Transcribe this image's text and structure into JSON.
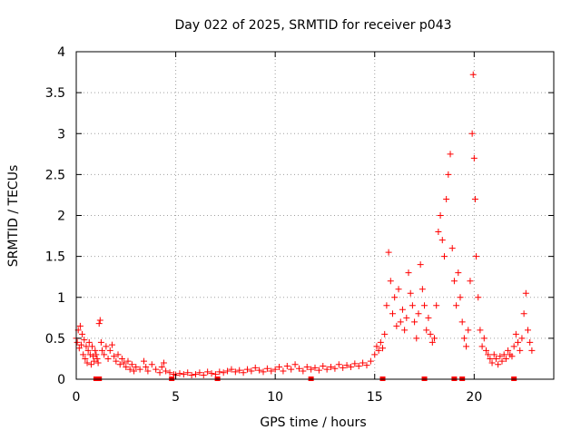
{
  "chart_data": {
    "type": "scatter",
    "title": "Day 022 of 2025, SRMTID for receiver p043",
    "xlabel": "GPS time / hours",
    "ylabel": "SRMTID / TECUs",
    "xlim": [
      0,
      24
    ],
    "ylim": [
      0,
      4
    ],
    "xticks": [
      0,
      5,
      10,
      15,
      20
    ],
    "xtick_labels": [
      "0",
      "5",
      "10",
      "15",
      "20"
    ],
    "yticks": [
      0,
      0.5,
      1,
      1.5,
      2,
      2.5,
      3,
      3.5,
      4
    ],
    "ytick_labels": [
      "0",
      "0.5",
      "1",
      "1.5",
      "2",
      "2.5",
      "3",
      "3.5",
      "4"
    ],
    "grid": true,
    "marker": "+",
    "color": "#ff0000",
    "series_name": "SRMTID",
    "points": [
      [
        0.0,
        0.5
      ],
      [
        0.05,
        0.45
      ],
      [
        0.1,
        0.6
      ],
      [
        0.15,
        0.38
      ],
      [
        0.2,
        0.65
      ],
      [
        0.25,
        0.42
      ],
      [
        0.3,
        0.55
      ],
      [
        0.35,
        0.3
      ],
      [
        0.4,
        0.48
      ],
      [
        0.45,
        0.25
      ],
      [
        0.5,
        0.4
      ],
      [
        0.55,
        0.2
      ],
      [
        0.6,
        0.35
      ],
      [
        0.65,
        0.45
      ],
      [
        0.7,
        0.3
      ],
      [
        0.75,
        0.18
      ],
      [
        0.8,
        0.4
      ],
      [
        0.85,
        0.28
      ],
      [
        0.9,
        0.22
      ],
      [
        0.95,
        0.35
      ],
      [
        1.0,
        0.3
      ],
      [
        1.05,
        0.25
      ],
      [
        1.1,
        0.2
      ],
      [
        1.15,
        0.68
      ],
      [
        1.2,
        0.72
      ],
      [
        1.25,
        0.45
      ],
      [
        1.3,
        0.35
      ],
      [
        1.4,
        0.3
      ],
      [
        1.5,
        0.4
      ],
      [
        1.6,
        0.25
      ],
      [
        1.7,
        0.35
      ],
      [
        1.8,
        0.42
      ],
      [
        1.9,
        0.28
      ],
      [
        2.0,
        0.22
      ],
      [
        2.1,
        0.3
      ],
      [
        2.2,
        0.18
      ],
      [
        2.3,
        0.25
      ],
      [
        2.4,
        0.2
      ],
      [
        2.5,
        0.15
      ],
      [
        2.6,
        0.22
      ],
      [
        2.7,
        0.12
      ],
      [
        2.8,
        0.18
      ],
      [
        2.9,
        0.1
      ],
      [
        3.0,
        0.15
      ],
      [
        3.2,
        0.12
      ],
      [
        3.4,
        0.22
      ],
      [
        3.5,
        0.15
      ],
      [
        3.6,
        0.1
      ],
      [
        3.8,
        0.18
      ],
      [
        4.0,
        0.12
      ],
      [
        4.2,
        0.08
      ],
      [
        4.3,
        0.15
      ],
      [
        4.4,
        0.2
      ],
      [
        4.5,
        0.1
      ],
      [
        4.7,
        0.08
      ],
      [
        4.9,
        0.06
      ],
      [
        5.0,
        0.05
      ],
      [
        5.2,
        0.07
      ],
      [
        5.4,
        0.06
      ],
      [
        5.6,
        0.08
      ],
      [
        5.8,
        0.05
      ],
      [
        6.0,
        0.06
      ],
      [
        6.2,
        0.08
      ],
      [
        6.4,
        0.05
      ],
      [
        6.6,
        0.09
      ],
      [
        6.8,
        0.07
      ],
      [
        7.0,
        0.06
      ],
      [
        7.2,
        0.09
      ],
      [
        7.4,
        0.08
      ],
      [
        7.6,
        0.1
      ],
      [
        7.8,
        0.12
      ],
      [
        8.0,
        0.09
      ],
      [
        8.2,
        0.11
      ],
      [
        8.4,
        0.08
      ],
      [
        8.6,
        0.12
      ],
      [
        8.8,
        0.1
      ],
      [
        9.0,
        0.14
      ],
      [
        9.2,
        0.11
      ],
      [
        9.4,
        0.09
      ],
      [
        9.6,
        0.13
      ],
      [
        9.8,
        0.1
      ],
      [
        10.0,
        0.12
      ],
      [
        10.2,
        0.15
      ],
      [
        10.4,
        0.1
      ],
      [
        10.6,
        0.16
      ],
      [
        10.8,
        0.12
      ],
      [
        11.0,
        0.18
      ],
      [
        11.2,
        0.13
      ],
      [
        11.4,
        0.1
      ],
      [
        11.6,
        0.15
      ],
      [
        11.8,
        0.12
      ],
      [
        12.0,
        0.14
      ],
      [
        12.2,
        0.11
      ],
      [
        12.4,
        0.16
      ],
      [
        12.6,
        0.12
      ],
      [
        12.8,
        0.15
      ],
      [
        13.0,
        0.13
      ],
      [
        13.2,
        0.18
      ],
      [
        13.4,
        0.14
      ],
      [
        13.6,
        0.17
      ],
      [
        13.8,
        0.15
      ],
      [
        14.0,
        0.19
      ],
      [
        14.2,
        0.16
      ],
      [
        14.4,
        0.2
      ],
      [
        14.6,
        0.17
      ],
      [
        14.8,
        0.22
      ],
      [
        15.0,
        0.3
      ],
      [
        15.1,
        0.4
      ],
      [
        15.2,
        0.35
      ],
      [
        15.3,
        0.45
      ],
      [
        15.4,
        0.38
      ],
      [
        15.5,
        0.55
      ],
      [
        15.6,
        0.9
      ],
      [
        15.7,
        1.55
      ],
      [
        15.8,
        1.2
      ],
      [
        15.9,
        0.8
      ],
      [
        16.0,
        1.0
      ],
      [
        16.1,
        0.65
      ],
      [
        16.2,
        1.1
      ],
      [
        16.3,
        0.7
      ],
      [
        16.4,
        0.85
      ],
      [
        16.5,
        0.6
      ],
      [
        16.6,
        0.75
      ],
      [
        16.7,
        1.3
      ],
      [
        16.8,
        1.05
      ],
      [
        16.9,
        0.9
      ],
      [
        17.0,
        0.7
      ],
      [
        17.1,
        0.5
      ],
      [
        17.2,
        0.8
      ],
      [
        17.3,
        1.4
      ],
      [
        17.4,
        1.1
      ],
      [
        17.5,
        0.9
      ],
      [
        17.6,
        0.6
      ],
      [
        17.7,
        0.75
      ],
      [
        17.8,
        0.55
      ],
      [
        17.9,
        0.45
      ],
      [
        18.0,
        0.5
      ],
      [
        18.1,
        0.9
      ],
      [
        18.2,
        1.8
      ],
      [
        18.3,
        2.0
      ],
      [
        18.4,
        1.7
      ],
      [
        18.5,
        1.5
      ],
      [
        18.6,
        2.2
      ],
      [
        18.7,
        2.5
      ],
      [
        18.8,
        2.75
      ],
      [
        18.9,
        1.6
      ],
      [
        19.0,
        1.2
      ],
      [
        19.1,
        0.9
      ],
      [
        19.2,
        1.3
      ],
      [
        19.3,
        1.0
      ],
      [
        19.4,
        0.7
      ],
      [
        19.5,
        0.5
      ],
      [
        19.6,
        0.4
      ],
      [
        19.7,
        0.6
      ],
      [
        19.8,
        1.2
      ],
      [
        19.9,
        3.0
      ],
      [
        19.95,
        3.72
      ],
      [
        20.0,
        2.7
      ],
      [
        20.05,
        2.2
      ],
      [
        20.1,
        1.5
      ],
      [
        20.2,
        1.0
      ],
      [
        20.3,
        0.6
      ],
      [
        20.4,
        0.4
      ],
      [
        20.5,
        0.5
      ],
      [
        20.6,
        0.35
      ],
      [
        20.7,
        0.3
      ],
      [
        20.8,
        0.25
      ],
      [
        20.9,
        0.2
      ],
      [
        21.0,
        0.3
      ],
      [
        21.1,
        0.25
      ],
      [
        21.2,
        0.18
      ],
      [
        21.3,
        0.28
      ],
      [
        21.4,
        0.22
      ],
      [
        21.5,
        0.3
      ],
      [
        21.6,
        0.25
      ],
      [
        21.7,
        0.35
      ],
      [
        21.8,
        0.3
      ],
      [
        21.9,
        0.28
      ],
      [
        22.0,
        0.4
      ],
      [
        22.1,
        0.55
      ],
      [
        22.2,
        0.45
      ],
      [
        22.3,
        0.35
      ],
      [
        22.4,
        0.5
      ],
      [
        22.5,
        0.8
      ],
      [
        22.6,
        1.05
      ],
      [
        22.7,
        0.6
      ],
      [
        22.8,
        0.45
      ],
      [
        22.9,
        0.35
      ]
    ],
    "gap_markers_x": [
      1.0,
      1.15,
      4.8,
      7.1,
      11.8,
      15.4,
      17.5,
      19.0,
      19.4,
      22.0
    ]
  }
}
